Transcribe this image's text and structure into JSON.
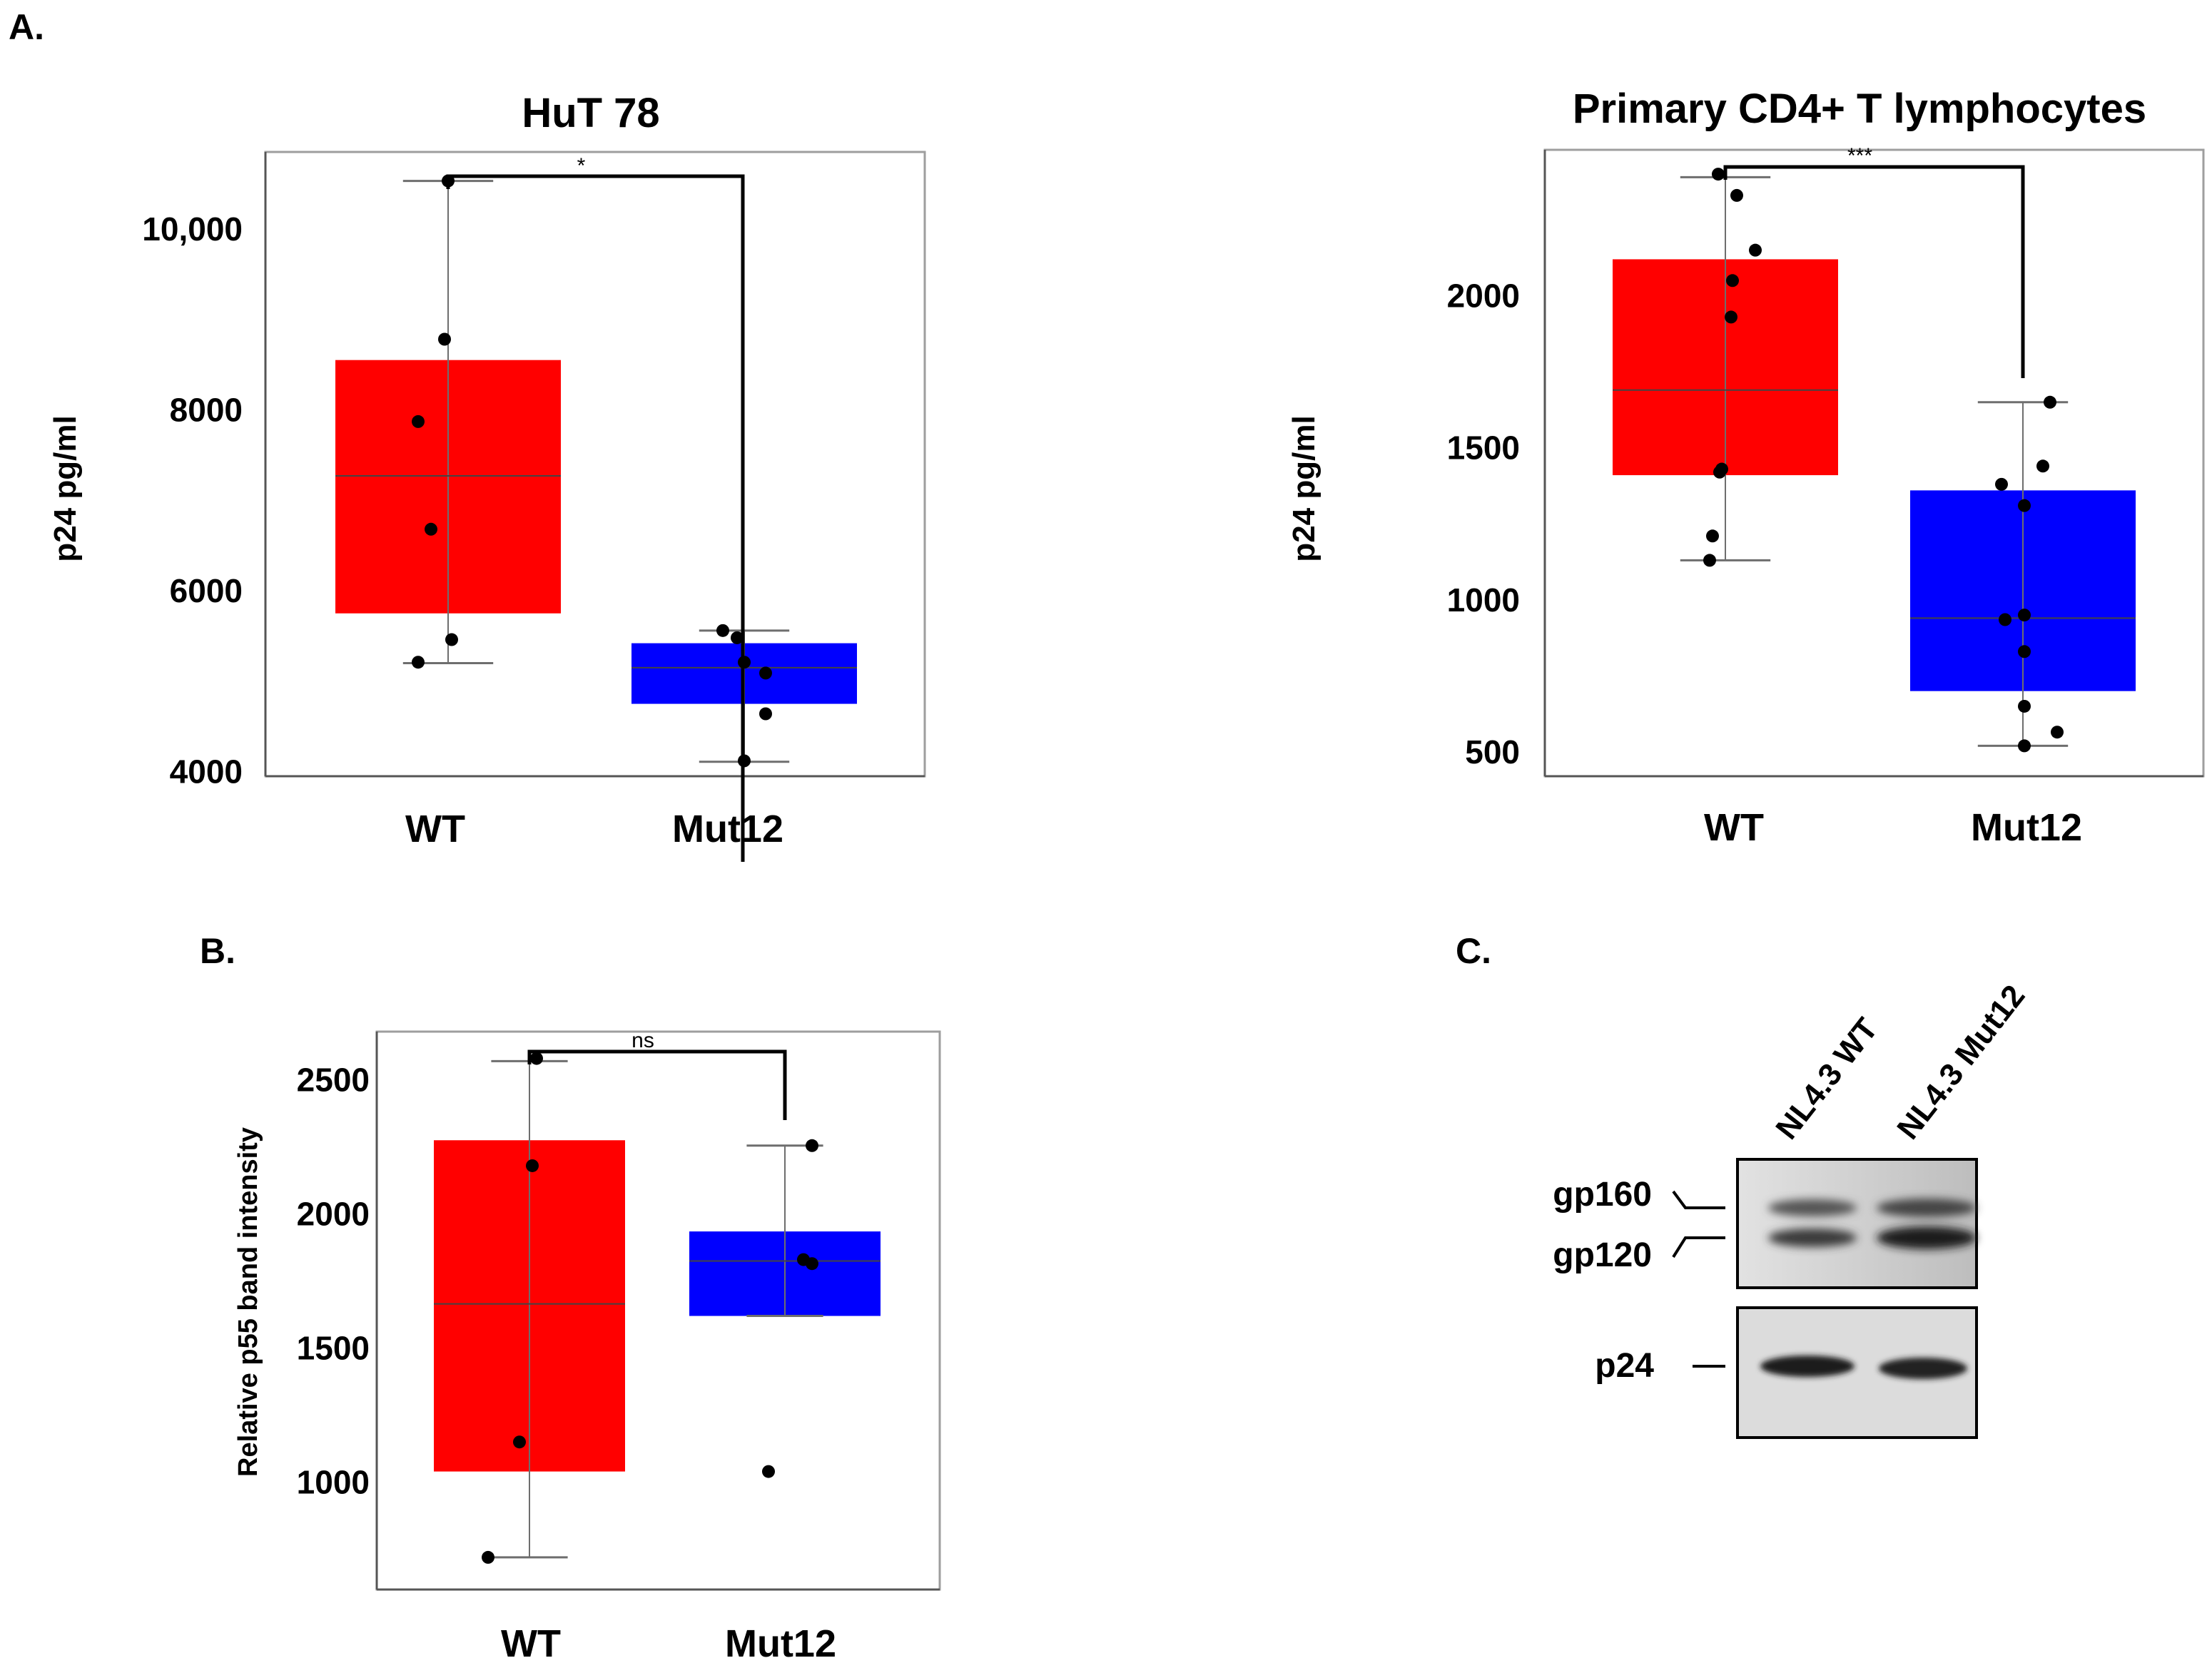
{
  "panel_letters": {
    "a": "A.",
    "b": "B.",
    "c": "C."
  },
  "chart_data": [
    {
      "id": "huT78",
      "type": "box",
      "title": "HuT 78",
      "ylabel": "p24 pg/ml",
      "xlabel": "",
      "categories": [
        "WT",
        "Mut12"
      ],
      "ylim": [
        3950,
        10850
      ],
      "yticks": [
        4000,
        6000,
        8000,
        10000
      ],
      "ytick_labels": [
        "4000",
        "6000",
        "8000",
        "10,000"
      ],
      "grid": false,
      "significance": "*",
      "series": [
        {
          "category": "WT",
          "color": "#ff0000",
          "box": {
            "q1": 5750,
            "median": 7270,
            "q3": 8550,
            "whisker_low": 5200,
            "whisker_high": 10530
          },
          "points": [
            10530,
            8780,
            7870,
            6680,
            5460,
            5210
          ]
        },
        {
          "category": "Mut12",
          "color": "#0000ff",
          "box": {
            "q1": 4750,
            "median": 5150,
            "q3": 5420,
            "whisker_low": 4110,
            "whisker_high": 5560
          },
          "points": [
            5560,
            5480,
            5210,
            5090,
            4640,
            4120
          ]
        }
      ]
    },
    {
      "id": "primaryCD4",
      "type": "box",
      "title": "Primary CD4+ T lymphocytes",
      "ylabel": "p24 pg/ml",
      "xlabel": "",
      "categories": [
        "WT",
        "Mut12"
      ],
      "ylim": [
        420,
        2480
      ],
      "yticks": [
        500,
        1000,
        1500,
        2000
      ],
      "ytick_labels": [
        "500",
        "1000",
        "1500",
        "2000"
      ],
      "grid": false,
      "significance": "***",
      "series": [
        {
          "category": "WT",
          "color": "#ff0000",
          "box": {
            "q1": 1410,
            "median": 1690,
            "q3": 2120,
            "whisker_low": 1130,
            "whisker_high": 2390
          },
          "points": [
            2400,
            2330,
            2150,
            2050,
            1930,
            1430,
            1420,
            1210,
            1130
          ]
        },
        {
          "category": "Mut12",
          "color": "#0000ff",
          "box": {
            "q1": 700,
            "median": 940,
            "q3": 1360,
            "whisker_low": 520,
            "whisker_high": 1650
          },
          "points": [
            1650,
            1440,
            1380,
            1310,
            950,
            935,
            830,
            650,
            565,
            520
          ]
        }
      ]
    },
    {
      "id": "p55",
      "type": "box",
      "title": "",
      "ylabel": "Relative p55 band intensity",
      "xlabel": "",
      "categories": [
        "WT",
        "Mut12"
      ],
      "ylim": [
        600,
        2680
      ],
      "yticks": [
        1000,
        1500,
        2000,
        2500
      ],
      "ytick_labels": [
        "1000",
        "1500",
        "2000",
        "2500"
      ],
      "grid": false,
      "significance": "ns",
      "series": [
        {
          "category": "WT",
          "color": "#ff0000",
          "box": {
            "q1": 1040,
            "median": 1665,
            "q3": 2275,
            "whisker_low": 720,
            "whisker_high": 2570
          },
          "points": [
            2580,
            2180,
            1150,
            720
          ]
        },
        {
          "category": "Mut12",
          "color": "#0000ff",
          "box": {
            "q1": 1620,
            "median": 1825,
            "q3": 1935,
            "whisker_low": 1620,
            "whisker_high": 2255
          },
          "points": [
            2255,
            1830,
            1815,
            1040
          ]
        }
      ]
    }
  ],
  "western_blot": {
    "lanes": [
      "NL4.3 WT",
      "NL4.3 Mut12"
    ],
    "bands_upper": [
      "gp160",
      "gp120"
    ],
    "bands_lower": [
      "p24"
    ]
  }
}
